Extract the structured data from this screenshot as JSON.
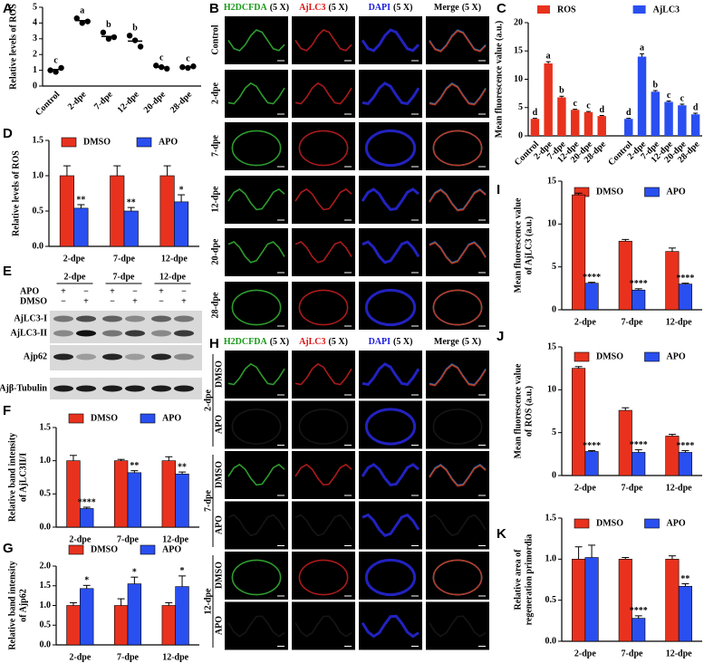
{
  "chart_data": [
    {
      "label": "A",
      "type": "dot",
      "ylabel": [
        "Relative levels of ROS"
      ],
      "categories": [
        "Control",
        "2-dpe",
        "7-dpe",
        "12-dpe",
        "20-dpe",
        "28-dpe"
      ],
      "points": [
        [
          1.0,
          0.9,
          1.15
        ],
        [
          4.3,
          4.0,
          4.1
        ],
        [
          3.4,
          3.0,
          3.1
        ],
        [
          3.2,
          2.9,
          2.5
        ],
        [
          1.3,
          1.2,
          1.1
        ],
        [
          1.2,
          1.15,
          1.25
        ]
      ],
      "values": [
        1.05,
        4.15,
        3.15,
        2.85,
        1.2,
        1.2
      ],
      "letters": [
        "c",
        "a",
        "b",
        "b",
        "c",
        "c"
      ],
      "color": "#000000",
      "ylim": [
        0,
        5
      ],
      "yticks": [
        0,
        1,
        2,
        3,
        4,
        5
      ]
    },
    {
      "label": "C",
      "type": "blockbar",
      "ylabel": [
        "Mean fluorescence value (a.u.)"
      ],
      "categories": [
        "Control",
        "2-dpe",
        "7-dpe",
        "12-dpe",
        "20-dpe",
        "28-dpe"
      ],
      "series": [
        {
          "name": "ROS",
          "color": "#e8321e",
          "values": [
            3,
            12.8,
            6.8,
            4.6,
            4.2,
            3.5
          ],
          "errors": [
            0.1,
            0.3,
            0.2,
            0.1,
            0.1,
            0.1
          ],
          "letters": [
            "d",
            "a",
            "b",
            "c",
            "c",
            "d"
          ]
        },
        {
          "name": "AjLC3",
          "color": "#2a4ff0",
          "values": [
            3,
            14,
            7.8,
            6,
            5.4,
            3.8
          ],
          "errors": [
            0.1,
            0.5,
            0.2,
            0.15,
            0.2,
            0.2
          ],
          "letters": [
            "d",
            "a",
            "b",
            "c",
            "c",
            "d"
          ]
        }
      ],
      "ylim": [
        0,
        20
      ],
      "yticks": [
        0,
        5,
        10,
        15,
        20
      ]
    },
    {
      "label": "D",
      "type": "bar",
      "ylabel": [
        "Relative levels of ROS"
      ],
      "categories": [
        "2-dpe",
        "7-dpe",
        "12-dpe"
      ],
      "series": [
        {
          "name": "DMSO",
          "color": "#e8321e",
          "values": [
            1,
            1,
            1
          ],
          "errors": [
            0.14,
            0.14,
            0.14
          ]
        },
        {
          "name": "APO",
          "color": "#2a4ff0",
          "values": [
            0.54,
            0.5,
            0.63
          ],
          "errors": [
            0.05,
            0.05,
            0.1
          ],
          "stars": [
            "**",
            "**",
            "*"
          ]
        }
      ],
      "ylim": [
        0,
        1.5
      ],
      "yticks": [
        {
          "value": 0,
          "label": "0.0"
        },
        0.5,
        {
          "value": 1,
          "label": "1.0"
        },
        1.5
      ]
    },
    {
      "label": "F",
      "type": "bar",
      "ylabel": [
        "Relative band intensity",
        "of AjLC3II/I"
      ],
      "categories": [
        "2-dpe",
        "7-dpe",
        "12-dpe"
      ],
      "series": [
        {
          "name": "DMSO",
          "color": "#e8321e",
          "values": [
            1,
            1,
            1
          ],
          "errors": [
            0.08,
            0.02,
            0.06
          ]
        },
        {
          "name": "APO",
          "color": "#2a4ff0",
          "values": [
            0.28,
            0.82,
            0.8
          ],
          "errors": [
            0.02,
            0.03,
            0.03
          ],
          "stars": [
            "****",
            "**",
            "**"
          ]
        }
      ],
      "ylim": [
        0,
        1.5
      ],
      "yticks": [
        {
          "value": 0,
          "label": "0.0"
        },
        0.5,
        {
          "value": 1,
          "label": "1.0"
        },
        1.5
      ]
    },
    {
      "label": "G",
      "type": "bar",
      "ylabel": [
        "Relative band intensity",
        "of Ajp62"
      ],
      "categories": [
        "2-dpe",
        "7-dpe",
        "12-dpe"
      ],
      "series": [
        {
          "name": "DMSO",
          "color": "#e8321e",
          "values": [
            1,
            1,
            1
          ],
          "errors": [
            0.07,
            0.17,
            0.07
          ]
        },
        {
          "name": "APO",
          "color": "#2a4ff0",
          "values": [
            1.43,
            1.55,
            1.48
          ],
          "errors": [
            0.08,
            0.17,
            0.27
          ],
          "stars": [
            "*",
            "*",
            "*"
          ]
        }
      ],
      "ylim": [
        0,
        2
      ],
      "yticks": [
        {
          "value": 0,
          "label": "0.0"
        },
        0.5,
        {
          "value": 1,
          "label": "1.0"
        },
        1.5,
        {
          "value": 2,
          "label": "2.0"
        }
      ]
    },
    {
      "label": "I",
      "type": "bar",
      "ylabel": [
        "Mean fluorescence value",
        "of AjLC3 (a.u.)"
      ],
      "categories": [
        "2-dpe",
        "7-dpe",
        "12-dpe"
      ],
      "series": [
        {
          "name": "DMSO",
          "color": "#e8321e",
          "values": [
            13.4,
            8.0,
            6.8
          ],
          "errors": [
            0.2,
            0.2,
            0.4
          ]
        },
        {
          "name": "APO",
          "color": "#2a4ff0",
          "values": [
            3.1,
            2.3,
            3.0
          ],
          "errors": [
            0.1,
            0.15,
            0.1
          ],
          "stars": [
            "****",
            "****",
            "****"
          ]
        }
      ],
      "ylim": [
        0,
        15
      ],
      "yticks": [
        0,
        5,
        10,
        15
      ]
    },
    {
      "label": "J",
      "type": "bar",
      "ylabel": [
        "Mean fluorescence value",
        "of ROS (a.u.)"
      ],
      "categories": [
        "2-dpe",
        "7-dpe",
        "12-dpe"
      ],
      "series": [
        {
          "name": "DMSO",
          "color": "#e8321e",
          "values": [
            12.5,
            7.6,
            4.6
          ],
          "errors": [
            0.2,
            0.3,
            0.2
          ]
        },
        {
          "name": "APO",
          "color": "#2a4ff0",
          "values": [
            2.8,
            2.7,
            2.7
          ],
          "errors": [
            0.1,
            0.3,
            0.2
          ],
          "stars": [
            "****",
            "****",
            "****"
          ]
        }
      ],
      "ylim": [
        0,
        15
      ],
      "yticks": [
        0,
        5,
        10,
        15
      ]
    },
    {
      "label": "K",
      "type": "bar",
      "ylabel": [
        "Relative  area of",
        "regeneration primordia"
      ],
      "categories": [
        "2-dpe",
        "7-dpe",
        "12-dpe"
      ],
      "series": [
        {
          "name": "DMSO",
          "color": "#e8321e",
          "values": [
            1,
            1,
            1
          ],
          "errors": [
            0.15,
            0.02,
            0.04
          ]
        },
        {
          "name": "APO",
          "color": "#2a4ff0",
          "values": [
            1.02,
            0.28,
            0.67
          ],
          "errors": [
            0.15,
            0.03,
            0.03
          ],
          "stars": [
            null,
            "****",
            "**"
          ]
        }
      ],
      "ylim": [
        0,
        1.5
      ],
      "yticks": [
        {
          "value": 0,
          "label": "0.0"
        },
        0.5,
        {
          "value": 1,
          "label": "1.0"
        },
        1.5
      ]
    }
  ],
  "micrographs_b": {
    "label": "B",
    "columns": [
      {
        "name": "H2DCFDA",
        "mag": "(5 X)",
        "color": "#1a9a1a"
      },
      {
        "name": "AjLC3",
        "mag": "(5 X)",
        "color": "#e01010"
      },
      {
        "name": "DAPI",
        "mag": "(5 X)",
        "color": "#1a1ae0"
      },
      {
        "name": "Merge",
        "mag": "(5 X)",
        "color": "#000000"
      }
    ],
    "rows": [
      "Control",
      "2-dpe",
      "7-dpe",
      "12-dpe",
      "20-dpe",
      "28-dpe"
    ]
  },
  "blot": {
    "label": "E",
    "lanes": [
      "2-dpe",
      "7-dpe",
      "12-dpe"
    ],
    "treatments": [
      {
        "name": "APO",
        "signs": [
          "+",
          "−",
          "+",
          "−",
          "+",
          "−"
        ]
      },
      {
        "name": "DMSO",
        "signs": [
          "−",
          "+",
          "−",
          "+",
          "−",
          "+"
        ]
      }
    ],
    "bands": [
      "AjLC3-I",
      "AjLC3-II",
      "Ajp62",
      "Ajβ-Tubulin"
    ]
  },
  "micrographs_h": {
    "label": "H",
    "columns": [
      {
        "name": "H2DCFDA",
        "mag": "(5 X)",
        "color": "#1a9a1a"
      },
      {
        "name": "AjLC3",
        "mag": "(5 X)",
        "color": "#e01010"
      },
      {
        "name": "DAPI",
        "mag": "(5 X)",
        "color": "#1a1ae0"
      },
      {
        "name": "Merge",
        "mag": "(5 X)",
        "color": "#000000"
      }
    ],
    "groups": [
      {
        "name": "2-dpe",
        "rows": [
          "DMSO",
          "APO"
        ]
      },
      {
        "name": "7-dpe",
        "rows": [
          "DMSO",
          "APO"
        ]
      },
      {
        "name": "12-dpe",
        "rows": [
          "DMSO",
          "APO"
        ]
      }
    ]
  }
}
